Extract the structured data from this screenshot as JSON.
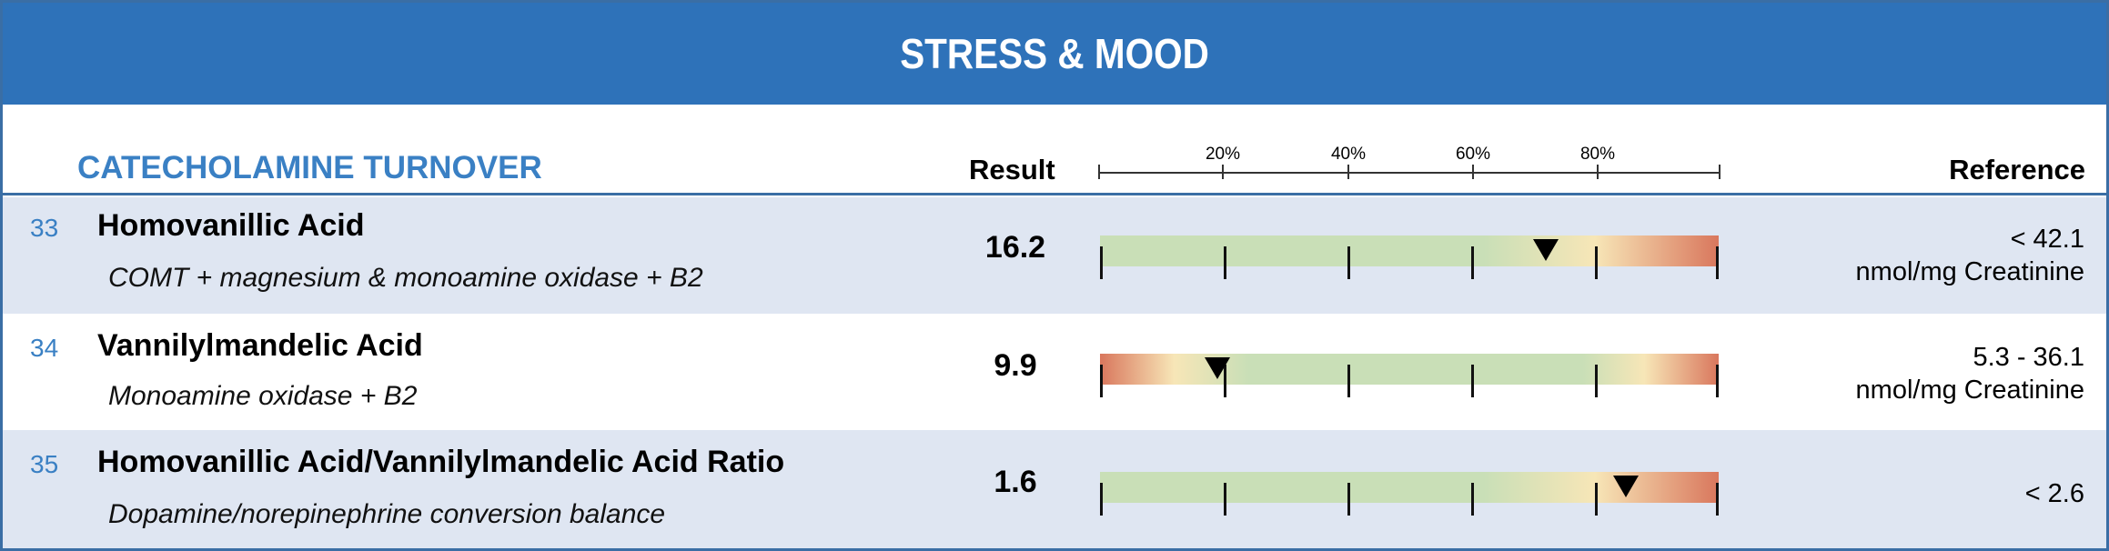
{
  "banner": {
    "title": "STRESS & MOOD"
  },
  "section": {
    "title": "CATECHOLAMINE TURNOVER",
    "result_header": "Result",
    "reference_header": "Reference"
  },
  "scale": {
    "tick_labels": [
      "20%",
      "40%",
      "60%",
      "80%"
    ]
  },
  "rows": [
    {
      "number": "33",
      "name": "Homovanillic Acid",
      "description": "COMT + magnesium & monoamine oxidase + B2",
      "result": "16.2",
      "marker_percent": 72,
      "reference_line1": "< 42.1",
      "reference_line2": "nmol/mg Creatinine",
      "bar_type": "upper"
    },
    {
      "number": "34",
      "name": "Vannilylmandelic Acid",
      "description": "Monoamine oxidase + B2",
      "result": "9.9",
      "marker_percent": 19,
      "reference_line1": "5.3 - 36.1",
      "reference_line2": "nmol/mg Creatinine",
      "bar_type": "range"
    },
    {
      "number": "35",
      "name": "Homovanillic Acid/Vannilylmandelic Acid Ratio",
      "description": "Dopamine/norepinephrine conversion balance",
      "result": "1.6",
      "marker_percent": 85,
      "reference_line1": "< 2.6",
      "reference_line2": "",
      "bar_type": "upper"
    }
  ],
  "colors": {
    "banner": "#2e72b9",
    "accent_text": "#3a80c4",
    "row_shade": "#dfe6f2",
    "bar_green": "#c9dfb7",
    "bar_yellow": "#f7e6b7",
    "bar_red": "#d9775d"
  }
}
